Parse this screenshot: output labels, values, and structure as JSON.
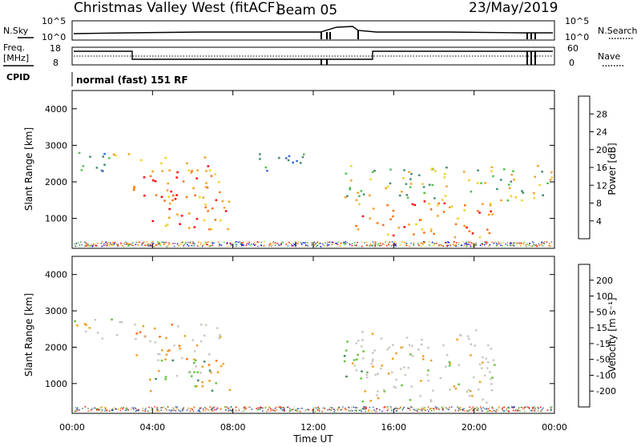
{
  "header": {
    "station": "Christmas Valley West (fitACF)",
    "beam": "Beam 05",
    "date": "23/May/2019"
  },
  "top_panels": {
    "nsky_label": "N.Sky",
    "nsearch_label": "N.Search",
    "nsky_left_top": "10^5",
    "nsky_left_bottom": "10^0",
    "nsky_right_top": "10^5",
    "nsky_right_bottom": "10^0",
    "freq_label_1": "Freq.",
    "freq_label_2": "[MHz]",
    "freq_top": "18",
    "freq_bottom": "8",
    "nave_label": "Nave",
    "nave_top": "60",
    "nave_bottom": "0",
    "cpid_label": "CPID",
    "cpid_value": "normal (fast) 151 RF"
  },
  "axes": {
    "ylabel": "Slant Range [km]",
    "xlabel": "Time UT",
    "yticks": [
      "1000",
      "2000",
      "3000",
      "4000"
    ],
    "xticks": [
      "00:00",
      "04:00",
      "08:00",
      "12:00",
      "16:00",
      "20:00",
      "00:00"
    ]
  },
  "power_bar": {
    "label": "Power [dB]",
    "ticks": [
      "4",
      "8",
      "12",
      "16",
      "20",
      "24",
      "28"
    ],
    "colors": [
      "#0000ff",
      "#3a6ad8",
      "#3f8f6a",
      "#4fc04f",
      "#f0d020",
      "#f5a020",
      "#ff7010",
      "#ff0000"
    ]
  },
  "velocity_bar": {
    "label": "Velocity [m s⁻¹]",
    "ticks": [
      "200",
      "100",
      "50",
      "15",
      "-15",
      "-50",
      "-100",
      "-200"
    ],
    "colors": [
      "#1f3fb0",
      "#2f6fd0",
      "#3f8a5a",
      "#66c33a",
      "#c8c8c0",
      "#f0a020",
      "#ff7010",
      "#ff3010",
      "#ff0000"
    ]
  },
  "chart_data": {
    "type": "heatmap",
    "x_range_hours": [
      0,
      24
    ],
    "y_range_km": [
      180,
      4500
    ],
    "power_echo_regions": [
      {
        "t0": 0.0,
        "t1": 1.8,
        "r0": 2200,
        "r1": 2900,
        "level": "low"
      },
      {
        "t0": 1.8,
        "t1": 2.8,
        "r0": 2600,
        "r1": 3000,
        "level": "medium"
      },
      {
        "t0": 3.0,
        "t1": 7.5,
        "r0": 1500,
        "r1": 2700,
        "level": "high"
      },
      {
        "t0": 3.8,
        "t1": 7.8,
        "r0": 700,
        "r1": 1700,
        "level": "high"
      },
      {
        "t0": 9.0,
        "t1": 11.5,
        "r0": 2300,
        "r1": 2900,
        "level": "low"
      },
      {
        "t0": 13.5,
        "t1": 24.0,
        "r0": 1500,
        "r1": 2500,
        "level": "medium"
      },
      {
        "t0": 14.0,
        "t1": 21.0,
        "r0": 500,
        "r1": 1500,
        "level": "high"
      }
    ],
    "velocity_echo_regions": [
      {
        "t0": 0.0,
        "t1": 2.5,
        "r0": 2200,
        "r1": 2800,
        "class": "near-zero"
      },
      {
        "t0": 3.0,
        "t1": 7.5,
        "r0": 1500,
        "r1": 2700,
        "class": "negative-small"
      },
      {
        "t0": 3.8,
        "t1": 7.8,
        "r0": 700,
        "r1": 1700,
        "class": "positive-mid"
      },
      {
        "t0": 13.5,
        "t1": 15.0,
        "r0": 1200,
        "r1": 2200,
        "class": "positive-mid"
      },
      {
        "t0": 14.0,
        "t1": 21.0,
        "r0": 500,
        "r1": 2500,
        "class": "near-zero"
      }
    ]
  }
}
